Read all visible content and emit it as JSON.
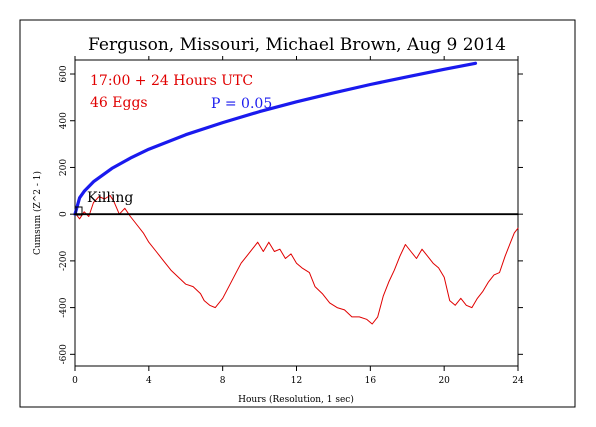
{
  "chart_data": {
    "type": "line",
    "title": "Ferguson, Missouri, Michael Brown, Aug 9 2014",
    "xlabel": "Hours (Resolution, 1 sec)",
    "ylabel": "Cumsum (Z^2 - 1)",
    "xlim": [
      0,
      24
    ],
    "ylim": [
      -650,
      660
    ],
    "x_ticks": [
      0,
      4,
      8,
      12,
      16,
      20,
      24
    ],
    "y_ticks": [
      -600,
      -400,
      -200,
      0,
      200,
      400,
      600
    ],
    "annotations": {
      "time_range": "17:00 + 24 Hours UTC",
      "eggs": "46 Eggs",
      "probability_label": "P = 0.05",
      "event_marker": "Killing"
    },
    "colors": {
      "cumsum": "#e00000",
      "envelope": "#1a1aee",
      "baseline": "#000000",
      "annotation_red": "#e00000",
      "annotation_blue": "#1a1aee"
    },
    "series": [
      {
        "color": "#e00000",
        "x": [
          0,
          0.25,
          0.5,
          0.75,
          1,
          1.3,
          1.6,
          1.9,
          2.1,
          2.4,
          2.7,
          3.0,
          3.3,
          3.7,
          4.0,
          4.4,
          4.8,
          5.2,
          5.6,
          6.0,
          6.4,
          6.8,
          7.0,
          7.3,
          7.6,
          8.0,
          8.4,
          8.8,
          9.0,
          9.3,
          9.6,
          9.9,
          10.2,
          10.5,
          10.8,
          11.1,
          11.4,
          11.7,
          12.0,
          12.3,
          12.7,
          13.0,
          13.4,
          13.8,
          14.2,
          14.6,
          15.0,
          15.4,
          15.8,
          16.1,
          16.4,
          16.7,
          17.0,
          17.3,
          17.6,
          17.9,
          18.2,
          18.5,
          18.8,
          19.1,
          19.4,
          19.7,
          20.0,
          20.3,
          20.6,
          20.9,
          21.2,
          21.5,
          21.8,
          22.1,
          22.4,
          22.7,
          23.0,
          23.3,
          23.6,
          23.8,
          24.0
        ],
        "values": [
          5,
          -20,
          10,
          -10,
          50,
          75,
          65,
          80,
          55,
          0,
          25,
          -10,
          -40,
          -80,
          -120,
          -160,
          -200,
          -240,
          -270,
          -300,
          -310,
          -340,
          -370,
          -390,
          -400,
          -360,
          -300,
          -240,
          -210,
          -180,
          -150,
          -120,
          -160,
          -120,
          -160,
          -150,
          -190,
          -170,
          -210,
          -230,
          -250,
          -310,
          -340,
          -380,
          -400,
          -410,
          -440,
          -440,
          -450,
          -470,
          -440,
          -350,
          -290,
          -240,
          -180,
          -130,
          -160,
          -190,
          -150,
          -180,
          -210,
          -230,
          -270,
          -370,
          -390,
          -360,
          -390,
          -400,
          -360,
          -330,
          -290,
          -260,
          -250,
          -180,
          -120,
          -80,
          -60
        ]
      },
      {
        "color": "#1a1aee",
        "x": [
          0,
          0.25,
          0.5,
          1,
          2,
          3,
          4,
          6,
          8,
          10,
          12,
          14,
          16,
          18,
          20,
          21.7
        ],
        "values": [
          0,
          70,
          98,
          139,
          196,
          240,
          278,
          340,
          392,
          439,
          481,
          519,
          555,
          588,
          620,
          646
        ]
      },
      {
        "color": "#000000",
        "x": [
          0,
          24
        ],
        "values": [
          0,
          0
        ]
      }
    ]
  }
}
